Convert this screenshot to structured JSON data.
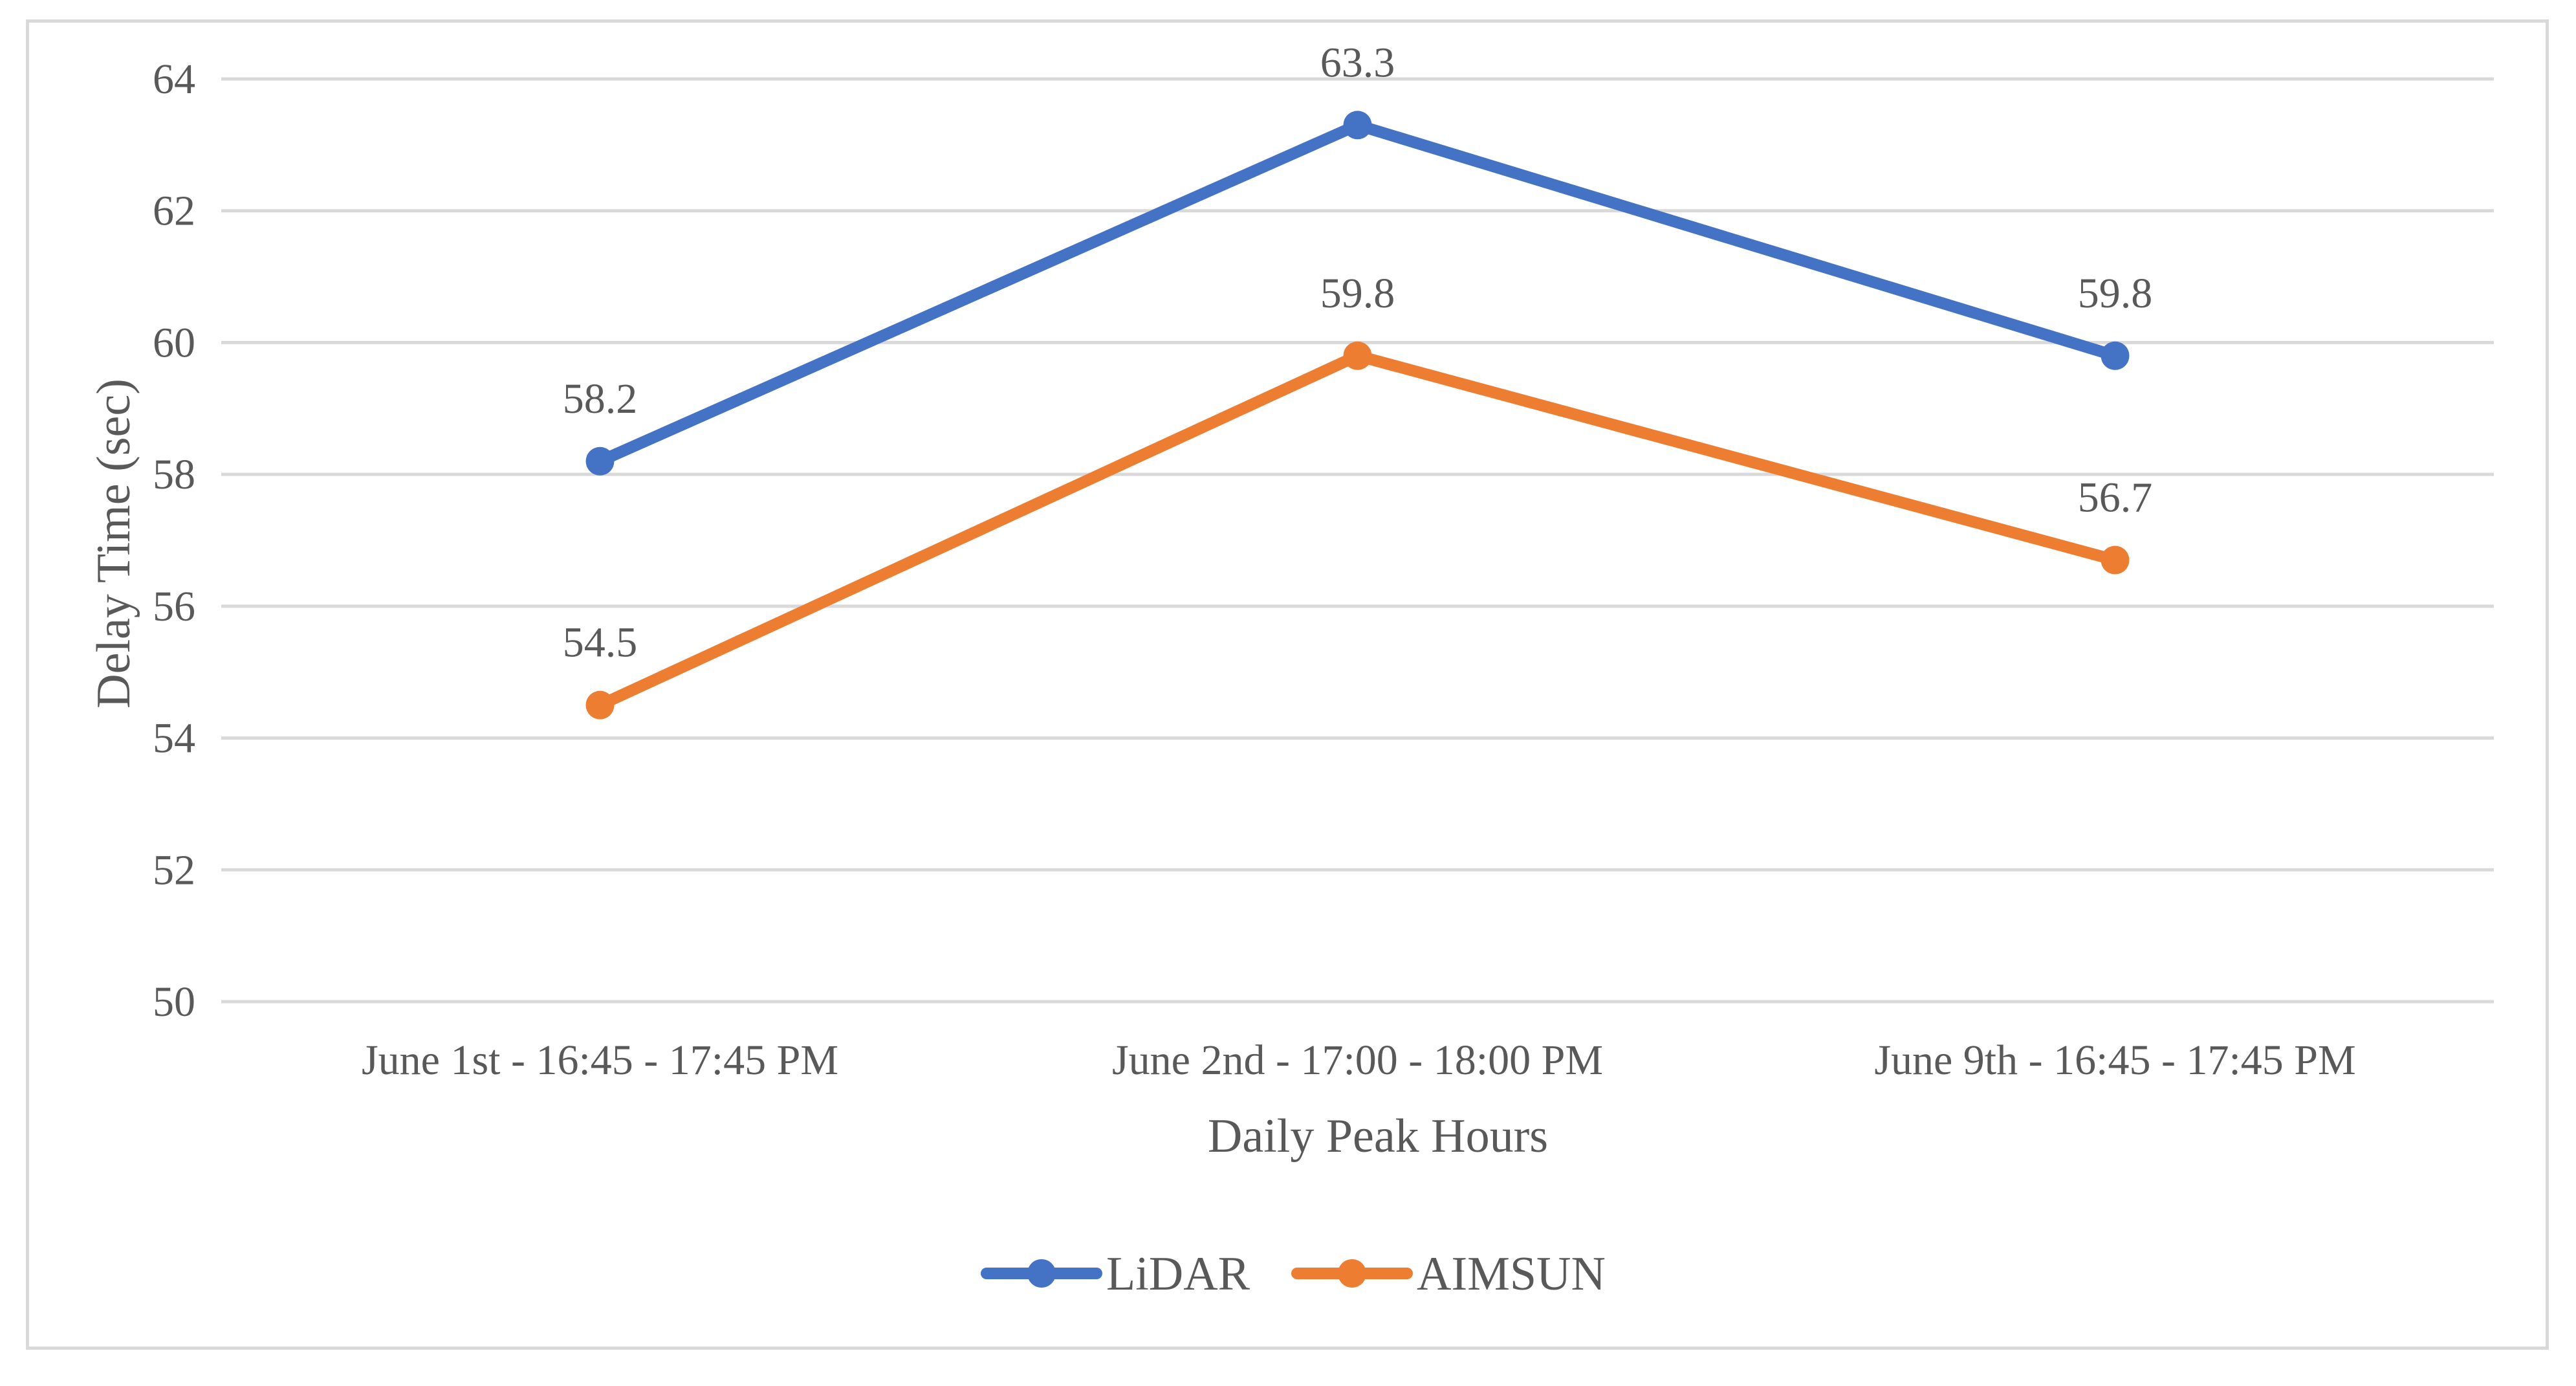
{
  "chart_data": {
    "type": "line",
    "title": "",
    "xlabel": "Daily Peak Hours",
    "ylabel": "Delay Time (sec)",
    "ylim": [
      50,
      64
    ],
    "ytick_step": 2,
    "grid": true,
    "legend_position": "bottom",
    "categories": [
      "June 1st - 16:45 - 17:45 PM",
      "June 2nd - 17:00 - 18:00 PM",
      "June 9th - 16:45 - 17:45 PM"
    ],
    "series": [
      {
        "name": "LiDAR",
        "color": "#4472c4",
        "values": [
          58.2,
          63.3,
          59.8
        ],
        "labels": [
          "58.2",
          "63.3",
          "59.8"
        ]
      },
      {
        "name": "AIMSUN",
        "color": "#ed7d31",
        "values": [
          54.5,
          59.8,
          56.7
        ],
        "labels": [
          "54.5",
          "59.8",
          "56.7"
        ]
      }
    ]
  }
}
